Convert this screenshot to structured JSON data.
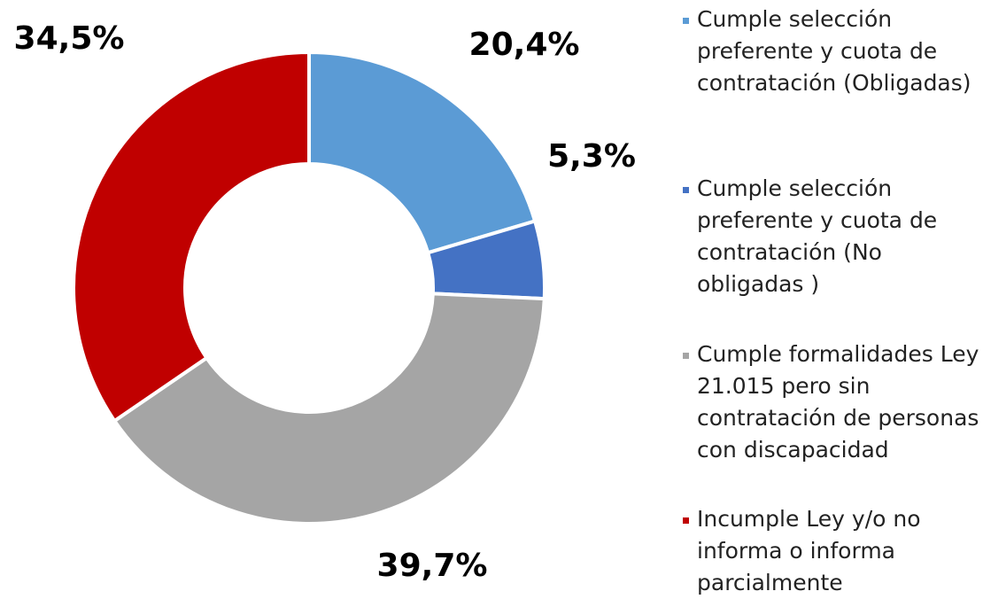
{
  "chart_data": {
    "type": "donut",
    "categories": [
      "Cumple selección preferente y cuota de contratación (Obligadas)",
      "Cumple selección preferente y cuota de contratación (No obligadas )",
      "Cumple formalidades Ley 21.015 pero sin contratación de personas con discapacidad",
      "Incumple Ley y/o no informa o informa parcialmente"
    ],
    "values": [
      20.4,
      5.3,
      39.7,
      34.5
    ],
    "value_labels": [
      "20,4%",
      "5,3%",
      "39,7%",
      "34,5%"
    ],
    "colors": [
      "#5b9bd5",
      "#4472c4",
      "#a5a5a5",
      "#c00000"
    ],
    "legend": "right"
  }
}
